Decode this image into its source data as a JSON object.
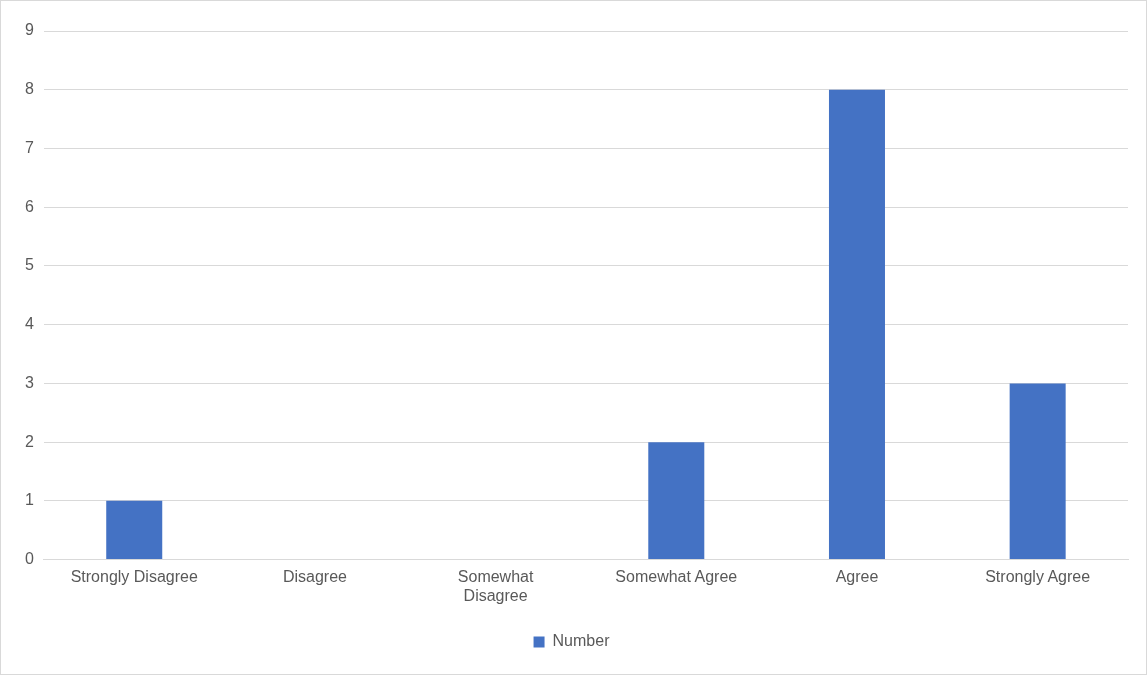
{
  "chart_data": {
    "type": "bar",
    "categories": [
      "Strongly Disagree",
      "Disagree",
      "Somewhat Disagree",
      "Somewhat Agree",
      "Agree",
      "Strongly Agree"
    ],
    "series": [
      {
        "name": "Number",
        "color": "#4472c4",
        "values": [
          1,
          0,
          0,
          2,
          8,
          3
        ]
      }
    ],
    "ylim": [
      0,
      9
    ],
    "yticks": [
      0,
      1,
      2,
      3,
      4,
      5,
      6,
      7,
      8,
      9
    ],
    "grid": "y",
    "legend": "bottom"
  }
}
